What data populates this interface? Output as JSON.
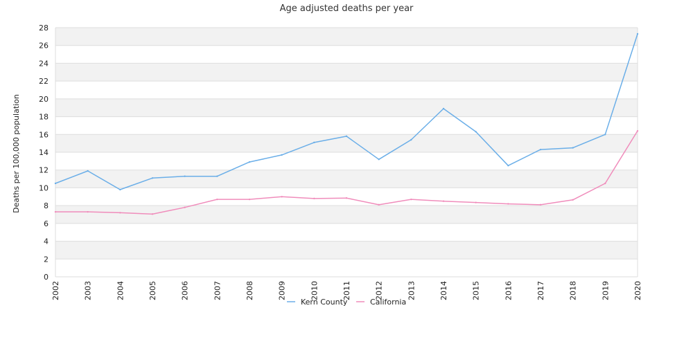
{
  "chart_data": {
    "type": "line",
    "title": "Age adjusted deaths per year",
    "ylabel": "Deaths per 100,000 population",
    "xlabel": "",
    "x": [
      "2002",
      "2003",
      "2004",
      "2005",
      "2006",
      "2007",
      "2008",
      "2009",
      "2010",
      "2011",
      "2012",
      "2013",
      "2014",
      "2015",
      "2016",
      "2017",
      "2018",
      "2019",
      "2020"
    ],
    "ylim": [
      0,
      28
    ],
    "yticks": [
      0,
      2,
      4,
      6,
      8,
      10,
      12,
      14,
      16,
      18,
      20,
      22,
      24,
      26,
      28
    ],
    "grid": "horizontal bands",
    "legend_position": "bottom",
    "series": [
      {
        "name": "Kern County",
        "color": "#6aaee8",
        "values": [
          10.5,
          11.9,
          9.8,
          11.1,
          11.3,
          11.3,
          12.9,
          13.7,
          15.1,
          15.8,
          13.2,
          15.4,
          18.9,
          16.3,
          12.5,
          14.3,
          14.5,
          16.0,
          27.3
        ]
      },
      {
        "name": "California",
        "color": "#f08cbb",
        "values": [
          7.3,
          7.3,
          7.2,
          7.05,
          7.8,
          8.7,
          8.7,
          9.0,
          8.8,
          8.85,
          8.1,
          8.7,
          8.5,
          8.35,
          8.2,
          8.1,
          8.65,
          10.5,
          16.4
        ]
      }
    ]
  }
}
